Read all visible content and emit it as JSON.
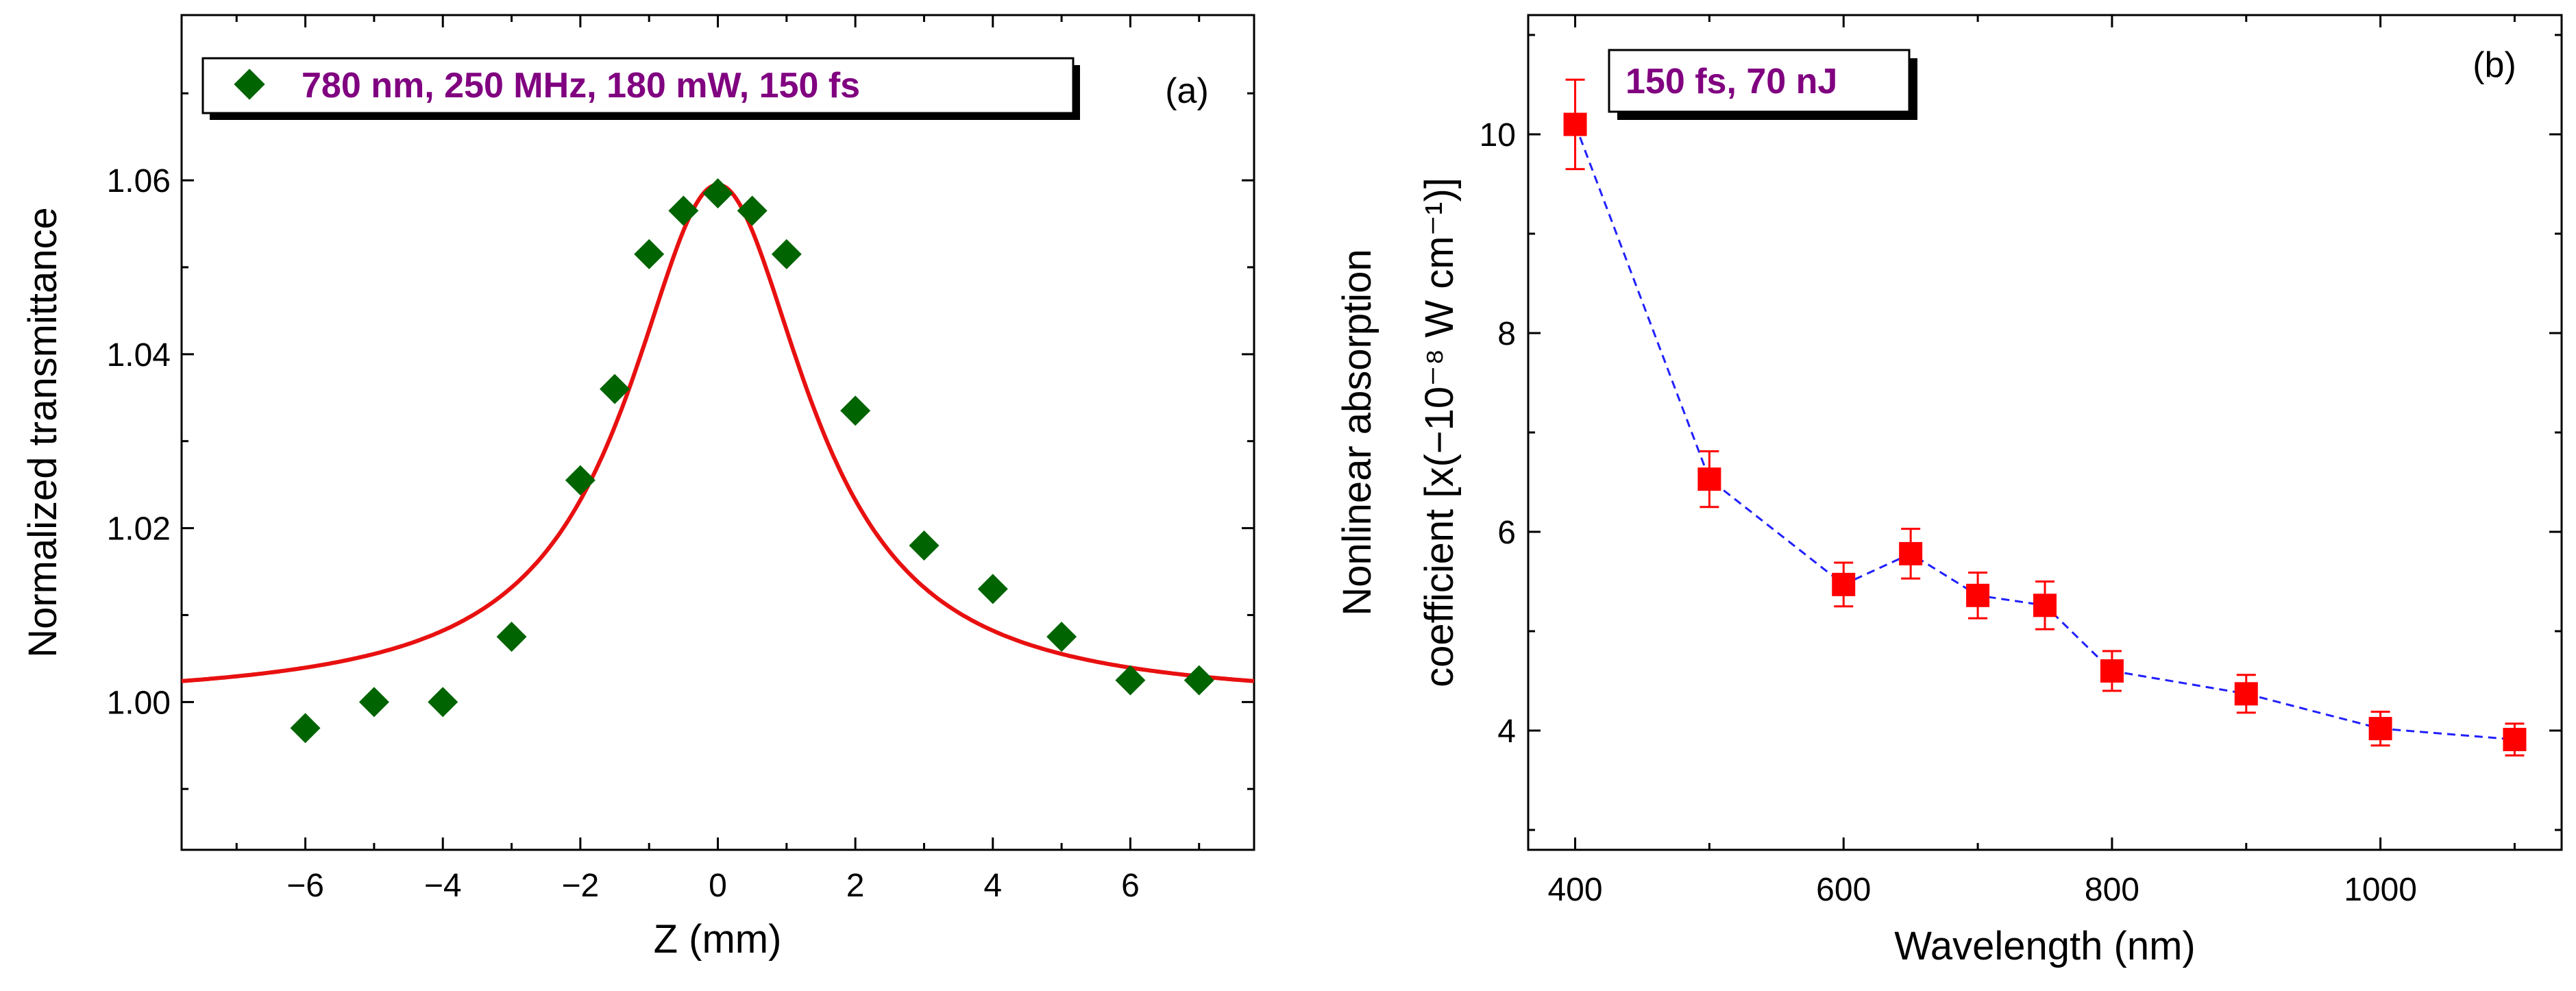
{
  "colors": {
    "fit_line": "#e81010",
    "diamond": "#006400",
    "square": "#ff0000",
    "dashed": "#2020ff",
    "legend_text": "#800080"
  },
  "chart_data": [
    {
      "type": "scatter",
      "panel_label": "(a)",
      "legend": {
        "text": "780 nm, 250 MHz, 180 mW, 150 fs",
        "placement": "top-left"
      },
      "xlabel": "Z (mm)",
      "ylabel": "Normalized transmittance",
      "xlim": [
        -7.8,
        7.8
      ],
      "ylim": [
        0.983,
        1.079
      ],
      "xticks": [
        -6,
        -4,
        -2,
        0,
        2,
        4,
        6
      ],
      "xtick_labels": [
        "−6",
        "−4",
        "−2",
        "0",
        "2",
        "4",
        "6"
      ],
      "yticks": [
        1.0,
        1.02,
        1.04,
        1.06
      ],
      "ytick_labels": [
        "1.00",
        "1.02",
        "1.04",
        "1.06"
      ],
      "series": [
        {
          "name": "780 nm, 250 MHz, 180 mW, 150 fs",
          "marker": "diamond",
          "x": [
            -6,
            -5,
            -4,
            -3,
            -2,
            -1.5,
            -1,
            -0.5,
            0,
            0.5,
            1,
            2,
            3,
            4,
            5,
            6,
            7
          ],
          "y": [
            0.997,
            1.0,
            1.0,
            1.0075,
            1.0255,
            1.036,
            1.0515,
            1.0565,
            1.0585,
            1.0565,
            1.0515,
            1.0335,
            1.018,
            1.013,
            1.0075,
            1.0025,
            1.0025
          ]
        },
        {
          "name": "fit",
          "type": "line",
          "model": "lorentzian",
          "baseline": 1.0,
          "amplitude": 0.0595,
          "z0": 1.6
        }
      ]
    },
    {
      "type": "line",
      "panel_label": "(b)",
      "legend": {
        "text": "150 fs, 70 nJ",
        "placement": "top-left"
      },
      "xlabel": "Wavelength (nm)",
      "ylabel_line1": "Nonlinear absorption",
      "ylabel_line2": "coefficient [x(−10⁻⁸ W cm⁻¹)]",
      "xlim": [
        365,
        1135
      ],
      "ylim": [
        2.8,
        11.2
      ],
      "xticks": [
        400,
        600,
        800,
        1000
      ],
      "xtick_labels": [
        "400",
        "600",
        "800",
        "1000"
      ],
      "yticks": [
        4,
        6,
        8,
        10
      ],
      "ytick_labels": [
        "4",
        "6",
        "8",
        "10"
      ],
      "series": [
        {
          "name": "150 fs, 70 nJ",
          "marker": "square",
          "line": "dashed",
          "x": [
            400,
            500,
            600,
            650,
            700,
            750,
            800,
            900,
            1000,
            1100
          ],
          "y": [
            10.1,
            6.53,
            5.47,
            5.78,
            5.36,
            5.26,
            4.6,
            4.37,
            4.02,
            3.91
          ],
          "err": [
            0.45,
            0.28,
            0.22,
            0.25,
            0.23,
            0.24,
            0.2,
            0.19,
            0.17,
            0.16
          ]
        }
      ]
    }
  ]
}
